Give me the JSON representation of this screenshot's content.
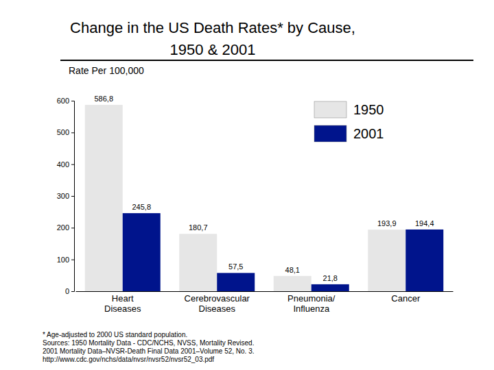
{
  "chart_data": {
    "type": "bar",
    "title": "Change in the US Death Rates* by Cause, 1950 & 2001",
    "y_label": "Rate Per 100,000",
    "categories": [
      "Heart Diseases",
      "Cerebrovascular Diseases",
      "Pneumonia/ Influenza",
      "Cancer"
    ],
    "series": [
      {
        "name": "1950",
        "color": "#e6e6e6",
        "values": [
          586.8,
          180.7,
          48.1,
          193.9
        ],
        "value_labels": [
          "586,8",
          "180,7",
          "48,1",
          "193,9"
        ]
      },
      {
        "name": "2001",
        "color": "#00148c",
        "values": [
          245.8,
          57.5,
          21.8,
          194.4
        ],
        "value_labels": [
          "245,8",
          "57,5",
          "21,8",
          "194,4"
        ]
      }
    ],
    "ylim": [
      0,
      600
    ],
    "yticks": [
      0,
      100,
      200,
      300,
      400,
      500,
      600
    ],
    "legend": "upper-right",
    "data_labels": true,
    "notes": [
      "* Age-adjusted to 2000 US standard population.",
      "Sources: 1950 Mortality Data - CDC/NCHS, NVSS, Mortality Revised.",
      "2001 Mortality Data–NVSR-Death Final Data 2001–Volume 52, No. 3.",
      "http://www.cdc.gov/nchs/data/nvsr/nvsr52/nvsr52_03.pdf"
    ]
  }
}
